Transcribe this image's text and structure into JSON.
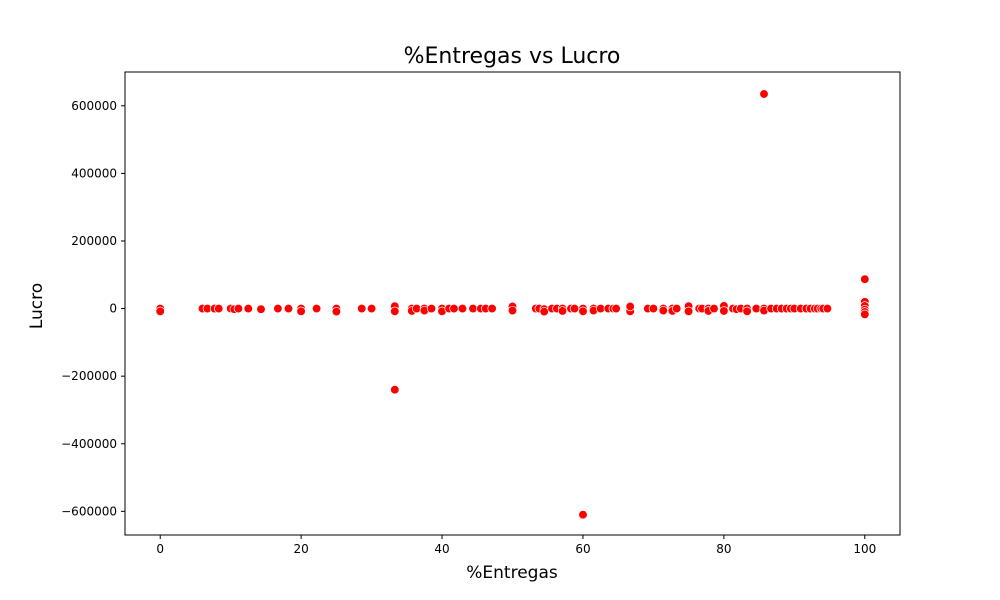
{
  "chart_data": {
    "type": "scatter",
    "title": "%Entregas vs Lucro",
    "xlabel": "%Entregas",
    "ylabel": "Lucro",
    "xlim": [
      -5,
      105
    ],
    "ylim": [
      -670000,
      700000
    ],
    "x_ticks": [
      0,
      20,
      40,
      60,
      80,
      100
    ],
    "x_tick_labels": [
      "0",
      "20",
      "40",
      "60",
      "80",
      "100"
    ],
    "y_ticks": [
      -600000,
      -400000,
      -200000,
      0,
      200000,
      400000,
      600000
    ],
    "y_tick_labels": [
      "−600000",
      "−400000",
      "−200000",
      "0",
      "200000",
      "400000",
      "600000"
    ],
    "grid": false,
    "legend": "none",
    "colors": {
      "point": "#ff0000",
      "point_edge": "#ffffff",
      "axis": "#000000"
    },
    "points": [
      [
        0,
        0
      ],
      [
        0,
        -8000
      ],
      [
        6,
        0
      ],
      [
        6.7,
        0
      ],
      [
        7.7,
        0
      ],
      [
        8.3,
        0
      ],
      [
        10,
        0
      ],
      [
        10.5,
        -2000
      ],
      [
        11.1,
        0
      ],
      [
        12.5,
        0
      ],
      [
        14.3,
        -2000
      ],
      [
        16.7,
        0
      ],
      [
        18.2,
        0
      ],
      [
        20,
        0
      ],
      [
        20,
        -8000
      ],
      [
        22.2,
        0
      ],
      [
        25,
        0
      ],
      [
        25,
        -9000
      ],
      [
        28.6,
        0
      ],
      [
        30,
        0
      ],
      [
        33.3,
        0
      ],
      [
        33.3,
        7000
      ],
      [
        33.3,
        -8000
      ],
      [
        33.3,
        -240000
      ],
      [
        35.7,
        0
      ],
      [
        35.7,
        -7000
      ],
      [
        36.4,
        0
      ],
      [
        37.5,
        0
      ],
      [
        37.5,
        -6000
      ],
      [
        38.5,
        0
      ],
      [
        40,
        0
      ],
      [
        40,
        -8000
      ],
      [
        41,
        0
      ],
      [
        41.7,
        0
      ],
      [
        42.9,
        0
      ],
      [
        44.4,
        0
      ],
      [
        45.5,
        0
      ],
      [
        46.2,
        0
      ],
      [
        47.1,
        0
      ],
      [
        50,
        0
      ],
      [
        50,
        6000
      ],
      [
        50,
        -6000
      ],
      [
        53.3,
        0
      ],
      [
        53.8,
        0
      ],
      [
        54.5,
        -2000
      ],
      [
        54.5,
        -9000
      ],
      [
        55.6,
        0
      ],
      [
        56.3,
        0
      ],
      [
        57.1,
        0
      ],
      [
        57.1,
        -7000
      ],
      [
        58.3,
        0
      ],
      [
        58.8,
        0
      ],
      [
        60,
        0
      ],
      [
        60,
        -8000
      ],
      [
        60,
        -610000
      ],
      [
        61.5,
        0
      ],
      [
        61.5,
        -6000
      ],
      [
        62.5,
        0
      ],
      [
        63.6,
        0
      ],
      [
        64.3,
        0
      ],
      [
        64.7,
        0
      ],
      [
        66.7,
        0
      ],
      [
        66.7,
        -8000
      ],
      [
        66.7,
        6000
      ],
      [
        69.2,
        0
      ],
      [
        70,
        0
      ],
      [
        71.4,
        0
      ],
      [
        71.4,
        -6000
      ],
      [
        72.7,
        0
      ],
      [
        72.7,
        -7000
      ],
      [
        73.3,
        0
      ],
      [
        75,
        0
      ],
      [
        75,
        7000
      ],
      [
        75,
        -8000
      ],
      [
        76.5,
        0
      ],
      [
        76.9,
        0
      ],
      [
        77.8,
        0
      ],
      [
        77.8,
        -7000
      ],
      [
        78.6,
        0
      ],
      [
        80,
        0
      ],
      [
        80,
        8000
      ],
      [
        80,
        -7000
      ],
      [
        81.3,
        0
      ],
      [
        81.8,
        -2000
      ],
      [
        82.4,
        0
      ],
      [
        83.3,
        0
      ],
      [
        83.3,
        -8000
      ],
      [
        84.6,
        0
      ],
      [
        85.7,
        0
      ],
      [
        85.7,
        -6000
      ],
      [
        85.7,
        635000
      ],
      [
        86.7,
        0
      ],
      [
        87.5,
        0
      ],
      [
        88.2,
        0
      ],
      [
        88.9,
        0
      ],
      [
        89.5,
        0
      ],
      [
        90,
        0
      ],
      [
        90.9,
        0
      ],
      [
        91.7,
        0
      ],
      [
        92.3,
        0
      ],
      [
        92.9,
        0
      ],
      [
        93.3,
        0
      ],
      [
        93.8,
        0
      ],
      [
        94.1,
        0
      ],
      [
        94.7,
        0
      ],
      [
        100,
        0
      ],
      [
        100,
        87000
      ],
      [
        100,
        20000
      ],
      [
        100,
        8000
      ],
      [
        100,
        -3000
      ],
      [
        100,
        -10000
      ],
      [
        100,
        -17000
      ]
    ]
  }
}
